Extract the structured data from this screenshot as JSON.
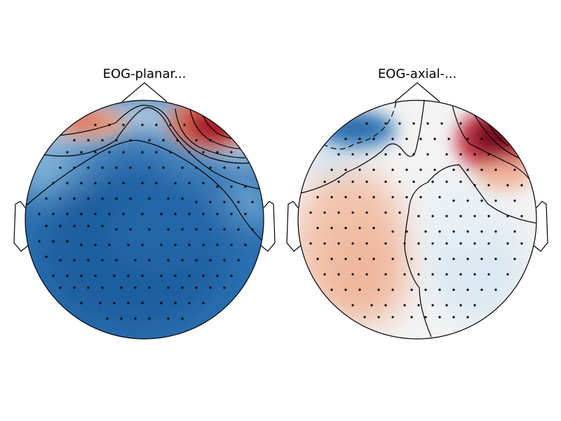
{
  "figure": {
    "background": "#ffffff",
    "colormap": "RdBu_r",
    "colors": {
      "strong_red": "#67001f",
      "white": "#f7f7f7",
      "strong_blue": "#053061",
      "outline": "#000000"
    }
  },
  "panels": [
    {
      "title": "EOG-planar...",
      "pattern": "frontal-right-positive, widespread negative",
      "contours": "solid",
      "sensor_count": 102
    },
    {
      "title": "EOG-axial-...",
      "pattern": "frontal-right-positive, frontal-left-negative",
      "contours": "solid and dashed",
      "sensor_count": 102
    }
  ]
}
